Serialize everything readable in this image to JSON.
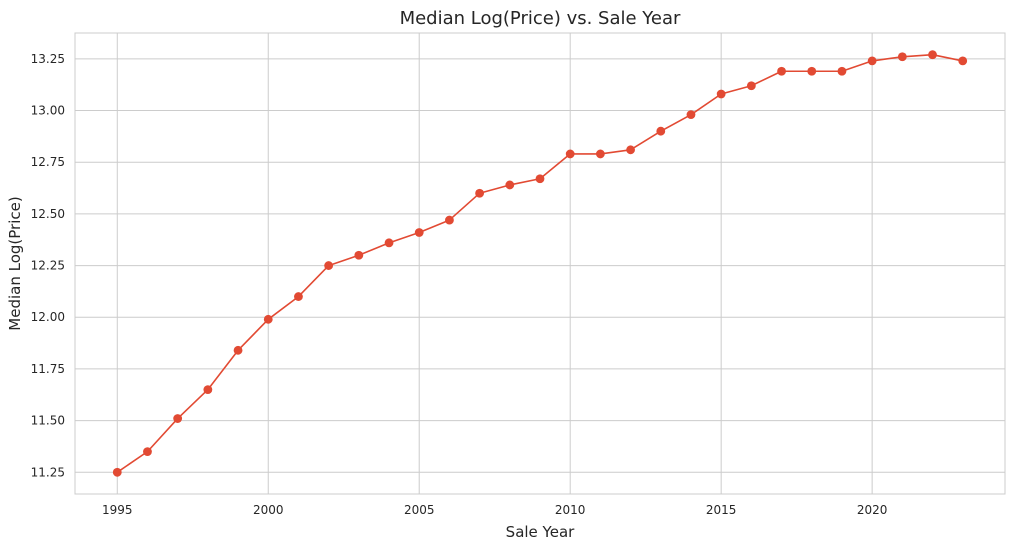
{
  "chart_data": {
    "type": "line",
    "title": "Median Log(Price) vs. Sale Year",
    "xlabel": "Sale Year",
    "ylabel": "Median Log(Price)",
    "xlim": [
      1993.6,
      2024.4
    ],
    "ylim": [
      11.145,
      13.375
    ],
    "xticks": [
      1995,
      2000,
      2005,
      2010,
      2015,
      2020
    ],
    "xtick_labels": [
      "1995",
      "2000",
      "2005",
      "2010",
      "2015",
      "2020"
    ],
    "yticks": [
      11.25,
      11.5,
      11.75,
      12.0,
      12.25,
      12.5,
      12.75,
      13.0,
      13.25
    ],
    "ytick_labels": [
      "11.25",
      "11.50",
      "11.75",
      "12.00",
      "12.25",
      "12.50",
      "12.75",
      "13.00",
      "13.25"
    ],
    "grid": true,
    "color": "#e24a33",
    "series": [
      {
        "x": [
          1995,
          1996,
          1997,
          1998,
          1999,
          2000,
          2001,
          2002,
          2003,
          2004,
          2005,
          2006,
          2007,
          2008,
          2009,
          2010,
          2011,
          2012,
          2013,
          2014,
          2015,
          2016,
          2017,
          2018,
          2019,
          2020,
          2021,
          2022,
          2023
        ],
        "values": [
          11.25,
          11.35,
          11.51,
          11.65,
          11.84,
          11.99,
          12.1,
          12.25,
          12.3,
          12.36,
          12.41,
          12.47,
          12.6,
          12.64,
          12.67,
          12.79,
          12.79,
          12.81,
          12.9,
          12.98,
          13.08,
          13.12,
          13.19,
          13.19,
          13.19,
          13.24,
          13.26,
          13.27,
          13.24
        ]
      }
    ]
  }
}
